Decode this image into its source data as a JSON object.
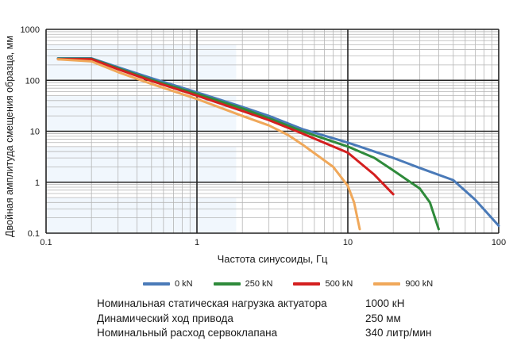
{
  "chart_data": {
    "type": "line",
    "xscale": "log",
    "yscale": "log",
    "xlabel": "Частота синусоиды, Гц",
    "ylabel": "Двойная амплитуда смещения образца, мм",
    "xlim": [
      0.1,
      100
    ],
    "ylim": [
      0.1,
      1000
    ],
    "x_ticks": [
      0.1,
      1,
      10,
      100
    ],
    "x_tick_labels": [
      "0.1",
      "1",
      "10",
      "100"
    ],
    "y_ticks": [
      0.1,
      1,
      10,
      100,
      1000
    ],
    "y_tick_labels": [
      "0.1",
      "1",
      "10",
      "100",
      "1000"
    ],
    "grid": true,
    "legend_position": "bottom",
    "series": [
      {
        "name": "0 kN",
        "color": "#4a7ab8",
        "points": [
          [
            0.12,
            270
          ],
          [
            0.2,
            270
          ],
          [
            0.3,
            180
          ],
          [
            0.5,
            110
          ],
          [
            1,
            58
          ],
          [
            2,
            30
          ],
          [
            3,
            20
          ],
          [
            5,
            11
          ],
          [
            10,
            6
          ],
          [
            20,
            3
          ],
          [
            30,
            1.9
          ],
          [
            50,
            1.1
          ],
          [
            70,
            0.45
          ],
          [
            100,
            0.14
          ]
        ]
      },
      {
        "name": "250 kN",
        "color": "#2e8a3a",
        "points": [
          [
            0.12,
            265
          ],
          [
            0.2,
            265
          ],
          [
            0.3,
            172
          ],
          [
            0.5,
            102
          ],
          [
            1,
            54
          ],
          [
            2,
            28
          ],
          [
            3,
            18
          ],
          [
            5,
            10
          ],
          [
            10,
            5
          ],
          [
            15,
            3
          ],
          [
            20,
            1.7
          ],
          [
            30,
            0.75
          ],
          [
            35,
            0.4
          ],
          [
            40,
            0.12
          ]
        ]
      },
      {
        "name": "500 kN",
        "color": "#d41f1f",
        "points": [
          [
            0.12,
            260
          ],
          [
            0.2,
            260
          ],
          [
            0.3,
            165
          ],
          [
            0.5,
            97
          ],
          [
            1,
            50
          ],
          [
            2,
            25
          ],
          [
            3,
            16.5
          ],
          [
            5,
            9
          ],
          [
            8,
            5
          ],
          [
            10,
            3.8
          ],
          [
            15,
            1.4
          ],
          [
            20,
            0.58
          ]
        ]
      },
      {
        "name": "900 kN",
        "color": "#f0a85a",
        "points": [
          [
            0.12,
            258
          ],
          [
            0.2,
            235
          ],
          [
            0.3,
            145
          ],
          [
            0.5,
            85
          ],
          [
            1,
            43
          ],
          [
            2,
            20
          ],
          [
            3,
            13
          ],
          [
            4,
            8.5
          ],
          [
            5,
            5.5
          ],
          [
            8,
            2
          ],
          [
            10,
            0.85
          ],
          [
            11,
            0.4
          ],
          [
            12,
            0.12
          ]
        ]
      }
    ]
  },
  "specs": [
    {
      "label": "Номинальная статическая нагрузка актуатора",
      "value": "1000 кН"
    },
    {
      "label": "Динамический ход привода",
      "value": "250 мм"
    },
    {
      "label": "Номинальный расход сервоклапана",
      "value": "340 литр/мин"
    }
  ]
}
